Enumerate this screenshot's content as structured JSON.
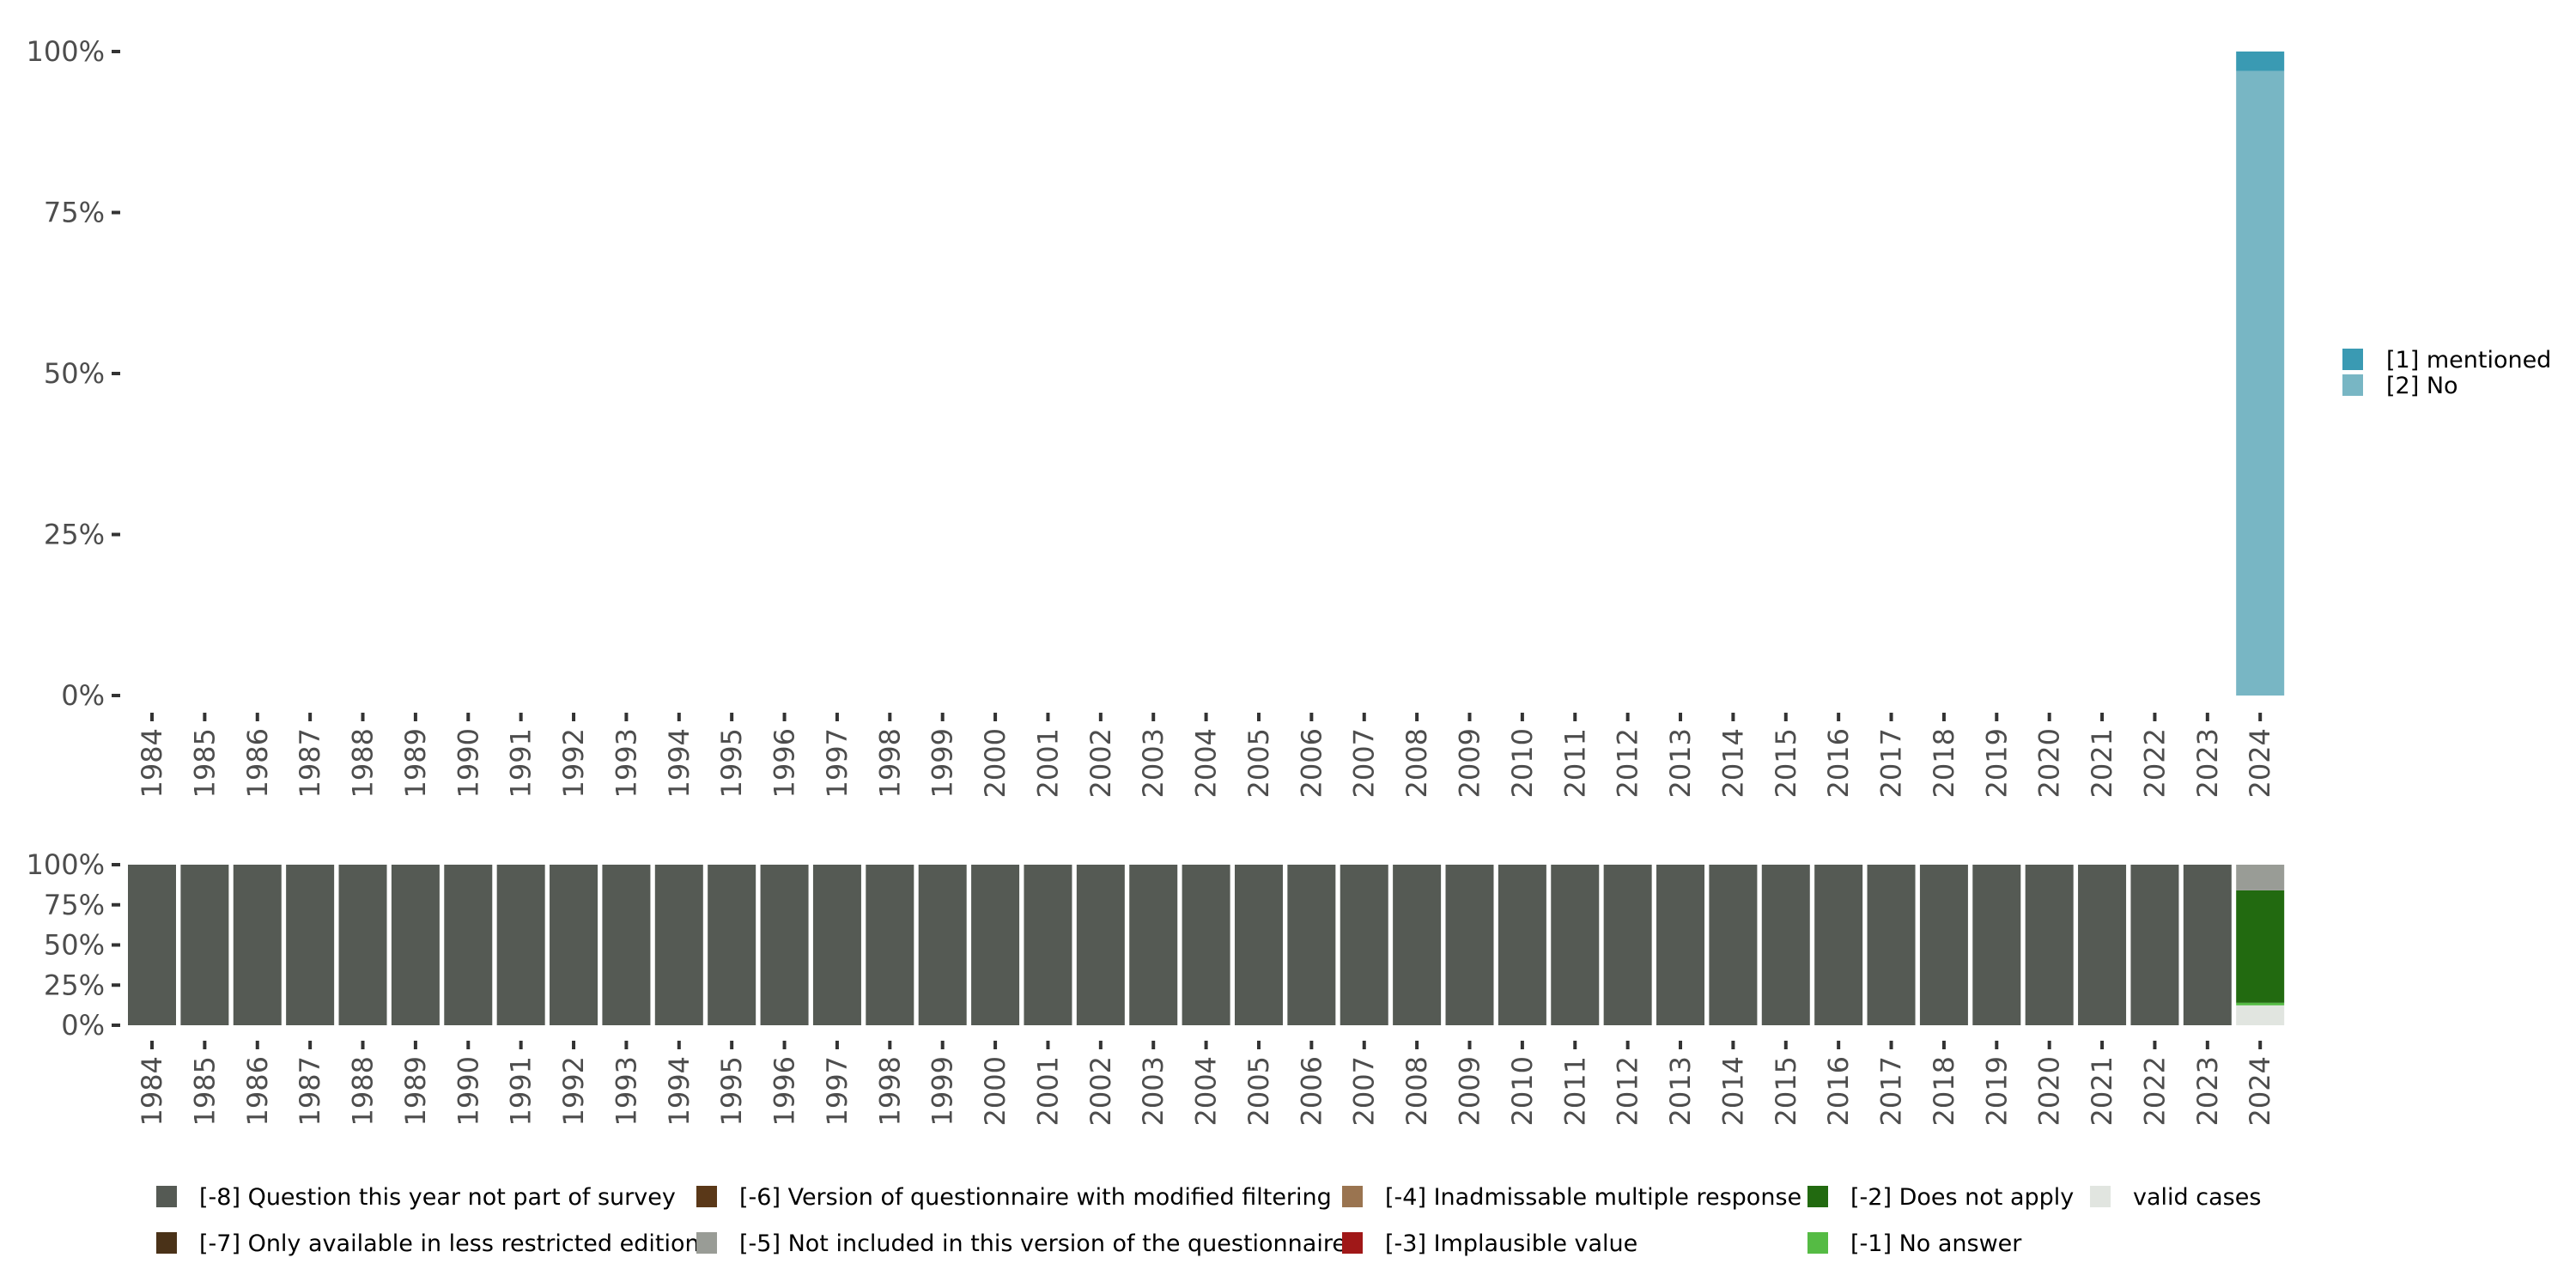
{
  "chart_data": [
    {
      "type": "bar",
      "stacked": true,
      "categories": [
        "1984",
        "1985",
        "1986",
        "1987",
        "1988",
        "1989",
        "1990",
        "1991",
        "1992",
        "1993",
        "1994",
        "1995",
        "1996",
        "1997",
        "1998",
        "1999",
        "2000",
        "2001",
        "2002",
        "2003",
        "2004",
        "2005",
        "2006",
        "2007",
        "2008",
        "2009",
        "2010",
        "2011",
        "2012",
        "2013",
        "2014",
        "2015",
        "2016",
        "2017",
        "2018",
        "2019",
        "2020",
        "2021",
        "2022",
        "2023",
        "2024"
      ],
      "yticks": [
        "0%",
        "25%",
        "50%",
        "75%",
        "100%"
      ],
      "ylim": [
        0,
        100
      ],
      "legend_position": "right",
      "series": [
        {
          "name": "[2] No",
          "color": "#78b6c4",
          "values": {
            "2024": 97
          }
        },
        {
          "name": "[1] mentioned",
          "color": "#3a9ab3",
          "values": {
            "2024": 3
          }
        }
      ]
    },
    {
      "type": "bar",
      "stacked": true,
      "categories": [
        "1984",
        "1985",
        "1986",
        "1987",
        "1988",
        "1989",
        "1990",
        "1991",
        "1992",
        "1993",
        "1994",
        "1995",
        "1996",
        "1997",
        "1998",
        "1999",
        "2000",
        "2001",
        "2002",
        "2003",
        "2004",
        "2005",
        "2006",
        "2007",
        "2008",
        "2009",
        "2010",
        "2011",
        "2012",
        "2013",
        "2014",
        "2015",
        "2016",
        "2017",
        "2018",
        "2019",
        "2020",
        "2021",
        "2022",
        "2023",
        "2024"
      ],
      "yticks": [
        "0%",
        "25%",
        "50%",
        "75%",
        "100%"
      ],
      "ylim": [
        0,
        100
      ],
      "legend_position": "bottom",
      "series": [
        {
          "name": "valid cases",
          "color": "#e1e5e0",
          "values": {
            "2024": 12.4
          }
        },
        {
          "name": "[-1] No answer",
          "color": "#55bb44",
          "values": {
            "2024": 1.6
          }
        },
        {
          "name": "[-2] Does not apply",
          "color": "#226a10",
          "values": {
            "2024": 70
          }
        },
        {
          "name": "[-3] Implausible value",
          "color": "#a01818",
          "values": {}
        },
        {
          "name": "[-4] Inadmissable multiple response",
          "color": "#9a7450",
          "values": {}
        },
        {
          "name": "[-5] Not included in this version of the questionnaire",
          "color": "#999c96",
          "values": {
            "2024": 16
          }
        },
        {
          "name": "[-6] Version of questionnaire with modified filtering",
          "color": "#5a3818",
          "values": {}
        },
        {
          "name": "[-7] Only available in less restricted edition",
          "color": "#4a3218",
          "values": {}
        },
        {
          "name": "[-8] Question this year not part of survey",
          "color": "#555a54",
          "values": {
            "1984": 100,
            "1985": 100,
            "1986": 100,
            "1987": 100,
            "1988": 100,
            "1989": 100,
            "1990": 100,
            "1991": 100,
            "1992": 100,
            "1993": 100,
            "1994": 100,
            "1995": 100,
            "1996": 100,
            "1997": 100,
            "1998": 100,
            "1999": 100,
            "2000": 100,
            "2001": 100,
            "2002": 100,
            "2003": 100,
            "2004": 100,
            "2005": 100,
            "2006": 100,
            "2007": 100,
            "2008": 100,
            "2009": 100,
            "2010": 100,
            "2011": 100,
            "2012": 100,
            "2013": 100,
            "2014": 100,
            "2015": 100,
            "2016": 100,
            "2017": 100,
            "2018": 100,
            "2019": 100,
            "2020": 100,
            "2021": 100,
            "2022": 100,
            "2023": 100
          }
        }
      ],
      "legend_order": [
        "[-8] Question this year not part of survey",
        "[-7] Only available in less restricted edition",
        "[-6] Version of questionnaire with modified filtering",
        "[-5] Not included in this version of the questionnaire",
        "[-4] Inadmissable multiple response",
        "[-3] Implausible value",
        "[-2] Does not apply",
        "[-1] No answer",
        "valid cases"
      ]
    }
  ]
}
